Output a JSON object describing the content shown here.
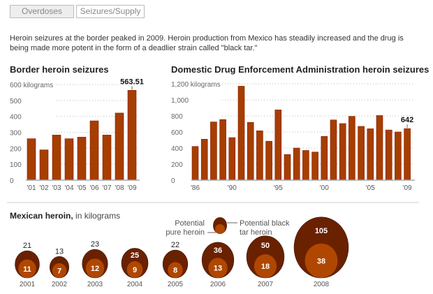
{
  "tabs": [
    {
      "label": "Overdoses",
      "selected": true
    },
    {
      "label": "Seizures/Supply",
      "selected": false
    }
  ],
  "intro": "Heroin seizures at the border peaked in 2009. Heroin production from Mexico has steadily increased and the drug is being made more potent in the form of a deadlier strain called \"black tar.\"",
  "colors": {
    "bar": "#a63e00",
    "bar_edge": "#8b1a00",
    "outer_circle": "#6a2100",
    "inner_circle": "#b04700",
    "grid": "#bbbbbb"
  },
  "chart_data": [
    {
      "type": "bar",
      "title": "Border heroin seizures",
      "ylabel": "kilograms",
      "ylim": [
        0,
        600
      ],
      "yticks": [
        "0",
        "100",
        "200",
        "300",
        "400",
        "500",
        "600 kilograms"
      ],
      "categories": [
        "'01",
        "'02",
        "'03",
        "'04",
        "'05",
        "'06",
        "'07",
        "'08",
        "'09"
      ],
      "values": [
        260,
        190,
        283,
        260,
        270,
        372,
        283,
        421,
        563.51
      ],
      "annotation": {
        "category": "'09",
        "label": "563.51"
      },
      "grid": true
    },
    {
      "type": "bar",
      "title": "Domestic Drug Enforcement Administration heroin seizures",
      "ylabel": "kilograms",
      "ylim": [
        0,
        1200
      ],
      "yticks": [
        "0",
        "200",
        "400",
        "600",
        "800",
        "1,000",
        "1,200 kilograms"
      ],
      "categories": [
        "1986",
        "1987",
        "1988",
        "1989",
        "1990",
        "1991",
        "1992",
        "1993",
        "1994",
        "1995",
        "1996",
        "1997",
        "1998",
        "1999",
        "2000",
        "2001",
        "2002",
        "2003",
        "2004",
        "2005",
        "2006",
        "2007",
        "2008",
        "2009"
      ],
      "xtick_labels": {
        "1986": "'86",
        "1990": "'90",
        "1995": "'95",
        "2000": "'00",
        "2005": "'05",
        "2009": "'09"
      },
      "values": [
        420,
        510,
        725,
        755,
        530,
        1170,
        720,
        615,
        485,
        875,
        320,
        400,
        370,
        350,
        545,
        750,
        705,
        795,
        670,
        640,
        805,
        625,
        600,
        642
      ],
      "annotation": {
        "category": "2009",
        "label": "642"
      },
      "grid": true
    },
    {
      "type": "bubble",
      "title": "Mexican heroin,",
      "subtitle": "in kilograms",
      "legend": {
        "inner": "Potential pure heroin",
        "inner_lines": [
          "Potential",
          "pure heroin"
        ],
        "outer": "Potential black tar heroin",
        "outer_lines": [
          "Potential black",
          "tar heroin"
        ]
      },
      "categories": [
        "2001",
        "2002",
        "2003",
        "2004",
        "2005",
        "2006",
        "2007",
        "2008"
      ],
      "series": [
        {
          "name": "Potential black tar heroin",
          "values": [
            21,
            13,
            23,
            25,
            22,
            36,
            50,
            105
          ]
        },
        {
          "name": "Potential pure heroin",
          "values": [
            11,
            7,
            12,
            9,
            8,
            13,
            18,
            38
          ]
        }
      ]
    }
  ]
}
